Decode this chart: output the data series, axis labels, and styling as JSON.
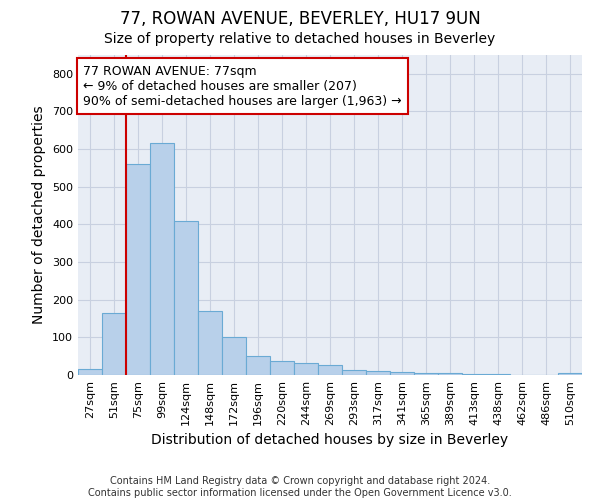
{
  "title": "77, ROWAN AVENUE, BEVERLEY, HU17 9UN",
  "subtitle": "Size of property relative to detached houses in Beverley",
  "xlabel": "Distribution of detached houses by size in Beverley",
  "ylabel": "Number of detached properties",
  "footnote": "Contains HM Land Registry data © Crown copyright and database right 2024.\nContains public sector information licensed under the Open Government Licence v3.0.",
  "categories": [
    "27sqm",
    "51sqm",
    "75sqm",
    "99sqm",
    "124sqm",
    "148sqm",
    "172sqm",
    "196sqm",
    "220sqm",
    "244sqm",
    "269sqm",
    "293sqm",
    "317sqm",
    "341sqm",
    "365sqm",
    "389sqm",
    "413sqm",
    "438sqm",
    "462sqm",
    "486sqm",
    "510sqm"
  ],
  "values": [
    15,
    165,
    560,
    615,
    410,
    170,
    100,
    50,
    38,
    33,
    27,
    12,
    10,
    7,
    5,
    4,
    3,
    2,
    1,
    1,
    5
  ],
  "bar_color": "#b8d0ea",
  "bar_edge_color": "#6aaad4",
  "property_line_index": 2,
  "property_line_color": "#cc0000",
  "annotation_text": "77 ROWAN AVENUE: 77sqm\n← 9% of detached houses are smaller (207)\n90% of semi-detached houses are larger (1,963) →",
  "annotation_box_color": "#ffffff",
  "annotation_box_edge_color": "#cc0000",
  "ylim": [
    0,
    850
  ],
  "yticks": [
    0,
    100,
    200,
    300,
    400,
    500,
    600,
    700,
    800
  ],
  "grid_color": "#c8d0e0",
  "background_color": "#e8edf5",
  "title_fontsize": 12,
  "subtitle_fontsize": 10,
  "axis_label_fontsize": 10,
  "tick_fontsize": 8,
  "annotation_fontsize": 9,
  "footnote_fontsize": 7
}
